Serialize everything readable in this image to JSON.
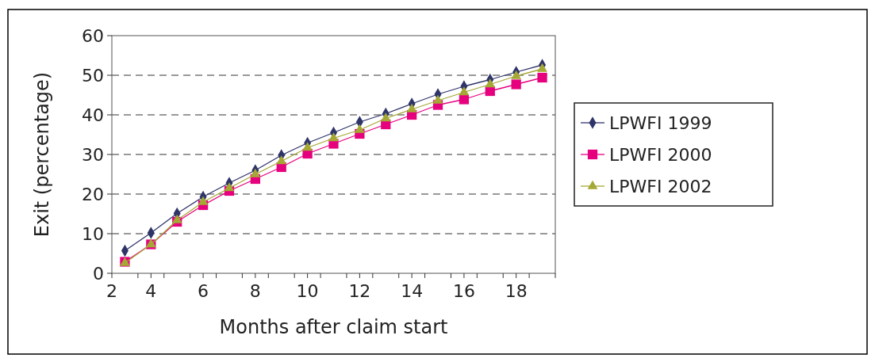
{
  "chart_data": {
    "type": "line",
    "xlabel": "Months after claim start",
    "ylabel": "Exit (percentage)",
    "x": [
      3,
      4,
      5,
      6,
      7,
      8,
      9,
      10,
      11,
      12,
      13,
      14,
      15,
      16,
      17,
      18,
      19
    ],
    "xlim": [
      2.5,
      19.5
    ],
    "xticks": [
      {
        "value": 2.5,
        "label": "2"
      },
      {
        "value": 3.5,
        "label": null
      },
      4,
      {
        "value": 4.5,
        "label": null
      },
      {
        "value": 5.5,
        "label": null
      },
      6,
      {
        "value": 6.5,
        "label": null
      },
      {
        "value": 7.5,
        "label": null
      },
      8,
      {
        "value": 8.5,
        "label": null
      },
      {
        "value": 9.5,
        "label": null
      },
      10,
      {
        "value": 10.5,
        "label": null
      },
      {
        "value": 11.5,
        "label": null
      },
      12,
      {
        "value": 12.5,
        "label": null
      },
      {
        "value": 13.5,
        "label": null
      },
      14,
      {
        "value": 14.5,
        "label": null
      },
      {
        "value": 15.5,
        "label": null
      },
      16,
      {
        "value": 16.5,
        "label": null
      },
      {
        "value": 17.5,
        "label": null
      },
      18,
      {
        "value": 18.5,
        "label": null
      },
      {
        "value": 19.5,
        "label": null
      }
    ],
    "ylim": [
      0,
      60
    ],
    "yticks": [
      0,
      10,
      20,
      30,
      40,
      50,
      60
    ],
    "grid": "y",
    "legend": "right",
    "series": [
      {
        "name": "LPWFI 1999",
        "color": "#2e3468",
        "marker": "diamond",
        "values": [
          5.7,
          10.2,
          15.1,
          19.3,
          22.8,
          26.0,
          29.8,
          32.9,
          35.5,
          38.2,
          40.3,
          42.8,
          45.2,
          47.2,
          48.9,
          50.8,
          52.6
        ]
      },
      {
        "name": "LPWFI 2000",
        "color": "#e6007e",
        "marker": "square",
        "values": [
          2.9,
          7.3,
          13.0,
          17.2,
          20.8,
          23.8,
          26.8,
          30.2,
          32.7,
          35.2,
          37.6,
          40.0,
          42.5,
          43.9,
          46.0,
          47.7,
          49.4
        ]
      },
      {
        "name": "LPWFI 2002",
        "color": "#a5a834",
        "marker": "triangle",
        "values": [
          2.6,
          7.3,
          13.4,
          18.0,
          21.5,
          25.0,
          28.3,
          31.7,
          34.1,
          36.2,
          39.1,
          41.4,
          43.6,
          45.7,
          47.7,
          49.8,
          51.6
        ]
      }
    ]
  }
}
